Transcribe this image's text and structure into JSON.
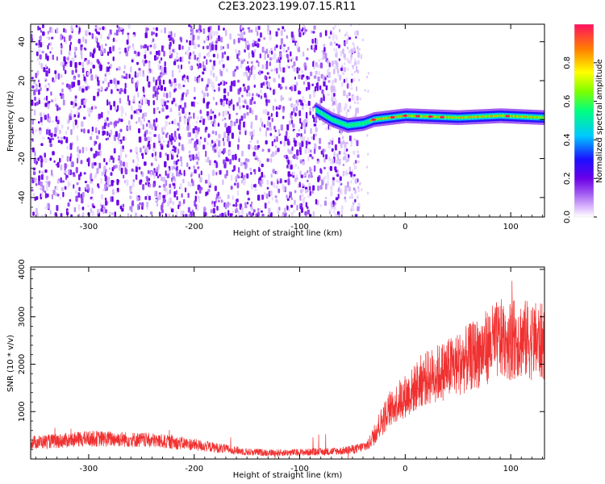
{
  "title": "C2E3.2023.199.07.15.R11",
  "chart_data": [
    {
      "type": "heatmap",
      "xlabel": "Height of straight line (km)",
      "ylabel": "Frequency (Hz)",
      "xlim": [
        -355,
        132
      ],
      "ylim": [
        -50,
        49
      ],
      "xticks": [
        -300,
        -200,
        -100,
        0,
        100
      ],
      "yticks": [
        -40,
        -20,
        0,
        20,
        40
      ],
      "colorbar": {
        "label": "Normalized spectral amplitude",
        "range": [
          0,
          1
        ],
        "ticks": [
          "0.0",
          "0.2",
          "0.4",
          "0.6",
          "0.8"
        ],
        "colormap": [
          "#ffffff",
          "#e3c8ff",
          "#a35cf0",
          "#6a00e8",
          "#1a10ff",
          "#00c8ff",
          "#00ff80",
          "#7dff00",
          "#ffff00",
          "#ff8000",
          "#ff1060"
        ]
      },
      "features": [
        {
          "description": "broadband noise",
          "x_range": [
            -355,
            -55
          ],
          "freq_range": [
            -50,
            49
          ],
          "amplitude": 0.05
        },
        {
          "description": "narrow tone near 0 Hz",
          "x_range": [
            -85,
            132
          ],
          "freq_center": [
            [
              -85,
              5
            ],
            [
              -70,
              0
            ],
            [
              -55,
              -3
            ],
            [
              -40,
              -2
            ],
            [
              -30,
              0
            ],
            [
              0,
              2
            ],
            [
              50,
              1
            ],
            [
              90,
              2
            ],
            [
              132,
              1
            ]
          ],
          "amplitude": 0.8
        }
      ]
    },
    {
      "type": "line",
      "xlabel": "Height of straight line (km)",
      "ylabel": "SNR (10 * v/v)",
      "xlim": [
        -355,
        132
      ],
      "ylim": [
        0,
        4050
      ],
      "xticks": [
        -300,
        -200,
        -100,
        0,
        100
      ],
      "yticks": [
        1000,
        2000,
        3000,
        4000
      ],
      "color": "#f03030",
      "series": [
        {
          "x": [
            -355,
            -330,
            -300,
            -270,
            -240,
            -210,
            -180,
            -150,
            -120,
            -100,
            -80,
            -60,
            -45,
            -35,
            -25,
            -15,
            -5,
            5,
            15,
            30,
            50,
            70,
            85,
            95,
            100,
            105,
            120,
            132
          ],
          "y": [
            350,
            380,
            430,
            420,
            390,
            330,
            240,
            150,
            130,
            140,
            150,
            170,
            220,
            300,
            700,
            1050,
            1250,
            1400,
            1650,
            1800,
            2000,
            2250,
            2480,
            2550,
            2500,
            2550,
            2500,
            2450
          ]
        }
      ]
    }
  ]
}
